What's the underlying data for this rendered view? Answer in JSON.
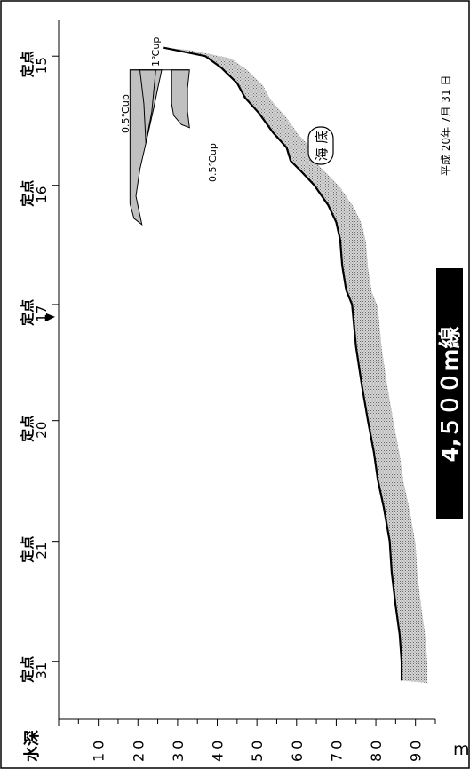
{
  "figure": {
    "title": "4,５００m線",
    "date": "平成 20年  7月  31 日",
    "seabed_label": "海 底",
    "depth_axis_label": "水深",
    "depth_unit": "m",
    "depth_ticks": [
      "10",
      "20",
      "30",
      "40",
      "50",
      "60",
      "70",
      "80",
      "90"
    ],
    "stations": [
      {
        "prefix": "定点",
        "id": "15"
      },
      {
        "prefix": "定点",
        "id": "16"
      },
      {
        "prefix": "定点",
        "id": "17"
      },
      {
        "prefix": "定点",
        "id": "20"
      },
      {
        "prefix": "定点",
        "id": "21"
      },
      {
        "prefix": "定点",
        "id": "31"
      }
    ],
    "marker_station": "17",
    "annotations": {
      "up1": "1℃up",
      "up05_upper": "0.5℃up",
      "up05_lower": "0.5℃up"
    },
    "colors": {
      "anomaly_fill": "#c0c0c0",
      "seabed_fill": "#bdbdbd",
      "line": "#000000",
      "title_bg": "#000000",
      "title_text": "#ffffff"
    }
  },
  "chart_data": {
    "type": "area",
    "orientation": "depth section (rotated 90°; distance along line runs top→bottom, depth increases to the right)",
    "depth_axis": {
      "label": "水深",
      "unit": "m",
      "range": [
        0,
        95
      ],
      "ticks": [
        10,
        20,
        30,
        40,
        50,
        60,
        70,
        80,
        90
      ]
    },
    "station_positions": [
      {
        "station": "15",
        "pos": 7.3
      },
      {
        "station": "16",
        "pos": 24.1
      },
      {
        "station": "17",
        "pos": 39.6
      },
      {
        "station": "20",
        "pos": 54.7
      },
      {
        "station": "21",
        "pos": 70.4
      },
      {
        "station": "31",
        "pos": 86.0
      }
    ],
    "seabed_profile": [
      {
        "pos": 6.2,
        "depth": 26.5
      },
      {
        "pos": 7.3,
        "depth": 37.0
      },
      {
        "pos": 8.8,
        "depth": 41.0
      },
      {
        "pos": 10.8,
        "depth": 45.0
      },
      {
        "pos": 12.7,
        "depth": 47.0
      },
      {
        "pos": 14.7,
        "depth": 50.5
      },
      {
        "pos": 17.2,
        "depth": 54.0
      },
      {
        "pos": 19.2,
        "depth": 57.5
      },
      {
        "pos": 20.9,
        "depth": 58.5
      },
      {
        "pos": 22.2,
        "depth": 61.0
      },
      {
        "pos": 24.1,
        "depth": 64.5
      },
      {
        "pos": 26.7,
        "depth": 68.0
      },
      {
        "pos": 28.9,
        "depth": 70.0
      },
      {
        "pos": 31.2,
        "depth": 71.0
      },
      {
        "pos": 34.5,
        "depth": 71.5
      },
      {
        "pos": 37.7,
        "depth": 72.5
      },
      {
        "pos": 39.6,
        "depth": 74.0
      },
      {
        "pos": 45.1,
        "depth": 75.0
      },
      {
        "pos": 50.2,
        "depth": 76.5
      },
      {
        "pos": 54.7,
        "depth": 78.0
      },
      {
        "pos": 58.8,
        "depth": 79.5
      },
      {
        "pos": 62.4,
        "depth": 80.5
      },
      {
        "pos": 66.0,
        "depth": 82.0
      },
      {
        "pos": 70.4,
        "depth": 83.5
      },
      {
        "pos": 74.4,
        "depth": 84.0
      },
      {
        "pos": 78.8,
        "depth": 85.0
      },
      {
        "pos": 82.5,
        "depth": 86.0
      },
      {
        "pos": 86.0,
        "depth": 86.5
      },
      {
        "pos": 88.5,
        "depth": 86.5
      }
    ],
    "anomaly_regions": [
      {
        "name": "0.5℃up",
        "outline": [
          {
            "pos": 9.1,
            "depth": 18.0
          },
          {
            "pos": 9.1,
            "depth": 26.0
          },
          {
            "pos": 11.5,
            "depth": 25.0
          },
          {
            "pos": 14.0,
            "depth": 24.0
          },
          {
            "pos": 17.5,
            "depth": 22.5
          },
          {
            "pos": 22.0,
            "depth": 20.5
          },
          {
            "pos": 25.5,
            "depth": 19.5
          },
          {
            "pos": 29.2,
            "depth": 21.0
          },
          {
            "pos": 28.4,
            "depth": 19.0
          },
          {
            "pos": 26.5,
            "depth": 18.0
          },
          {
            "pos": 23.0,
            "depth": 18.0
          },
          {
            "pos": 18.0,
            "depth": 18.0
          },
          {
            "pos": 13.5,
            "depth": 18.0
          }
        ]
      },
      {
        "name": "0.5℃up",
        "outline": [
          {
            "pos": 9.1,
            "depth": 28.5
          },
          {
            "pos": 10.5,
            "depth": 28.5
          },
          {
            "pos": 13.5,
            "depth": 28.5
          },
          {
            "pos": 15.0,
            "depth": 29.0
          },
          {
            "pos": 16.2,
            "depth": 31.0
          },
          {
            "pos": 16.6,
            "depth": 33.0
          },
          {
            "pos": 14.5,
            "depth": 32.5
          },
          {
            "pos": 11.5,
            "depth": 32.5
          },
          {
            "pos": 9.1,
            "depth": 33.0
          }
        ]
      },
      {
        "name": "1℃up",
        "outline": [
          {
            "pos": 9.1,
            "depth": 20.5
          },
          {
            "pos": 13.5,
            "depth": 21.5
          },
          {
            "pos": 18.6,
            "depth": 22.0
          },
          {
            "pos": 14.5,
            "depth": 23.5
          },
          {
            "pos": 9.1,
            "depth": 24.5
          }
        ]
      }
    ]
  }
}
